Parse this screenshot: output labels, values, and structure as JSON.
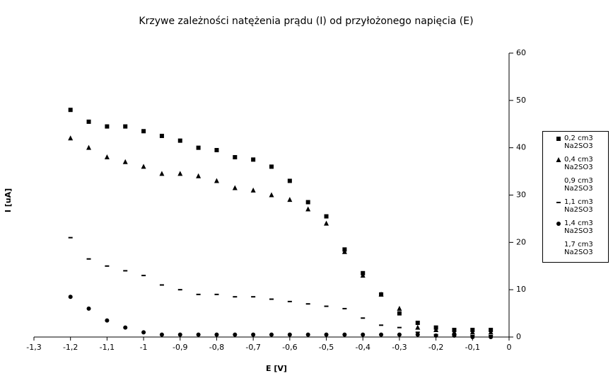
{
  "chart_data": {
    "type": "scatter",
    "title": "Krzywe zależności natężenia prądu (I) od przyłożonego napięcia (E)",
    "x_label": "E [V]",
    "y_label": "I [uA]",
    "x": [
      -1.2,
      -1.15,
      -1.1,
      -1.05,
      -1,
      -0.95,
      -0.9,
      -0.85,
      -0.8,
      -0.75,
      -0.7,
      -0.65,
      -0.6,
      -0.55,
      -0.5,
      -0.45,
      -0.4,
      -0.35,
      -0.3,
      -0.25,
      -0.2,
      -0.15,
      -0.1,
      -0.05
    ],
    "series": [
      {
        "name": "0,2 cm3 Na2SO3",
        "color": "#000000",
        "marker": "square",
        "values": [
          48,
          45.5,
          44.5,
          44.5,
          43.5,
          42.5,
          41.5,
          40,
          39.5,
          38,
          37.5,
          36,
          33,
          28.5,
          25.5,
          18.5,
          13.5,
          9,
          5,
          3,
          2,
          1.5,
          1.5,
          1.5
        ]
      },
      {
        "name": "0,4 cm3 Na2SO3",
        "color": "#000000",
        "marker": "triangle",
        "values": [
          42,
          40,
          38,
          37,
          36,
          34.5,
          34.5,
          34,
          33,
          31.5,
          31,
          30,
          29,
          27,
          24,
          18,
          13,
          9,
          6,
          2,
          1.5,
          1,
          1,
          1
        ]
      },
      {
        "name": "0,9 cm3 Na2SO3",
        "color": "#000000",
        "marker": "none",
        "values": [
          null,
          null,
          null,
          null,
          null,
          null,
          null,
          null,
          null,
          null,
          null,
          null,
          null,
          null,
          null,
          null,
          null,
          null,
          null,
          null,
          null,
          null,
          null,
          null
        ]
      },
      {
        "name": "1,1 cm3 Na2SO3",
        "color": "#000000",
        "marker": "dash",
        "values": [
          21,
          16.5,
          15,
          14,
          13,
          11,
          10,
          9,
          9,
          8.5,
          8.5,
          8,
          7.5,
          7,
          6.5,
          6,
          4,
          2.5,
          2,
          1,
          0.5,
          0.5,
          0.3,
          0.3
        ]
      },
      {
        "name": "1,4 cm3 Na2SO3",
        "color": "#000000",
        "marker": "circle",
        "values": [
          8.5,
          6,
          3.5,
          2,
          1,
          0.5,
          0.5,
          0.5,
          0.5,
          0.5,
          0.5,
          0.5,
          0.5,
          0.5,
          0.5,
          0.5,
          0.5,
          0.5,
          0.5,
          0.5,
          0.3,
          0.3,
          0,
          0
        ]
      },
      {
        "name": "1,7 cm3 Na2SO3",
        "color": "#000000",
        "marker": "none",
        "values": [
          null,
          null,
          null,
          null,
          null,
          null,
          null,
          null,
          null,
          null,
          null,
          null,
          null,
          null,
          null,
          null,
          null,
          null,
          null,
          null,
          null,
          null,
          null,
          null
        ]
      }
    ],
    "xlim": [
      -1.3,
      0
    ],
    "xticks": [
      {
        "value": -1.3,
        "label": "-1,3"
      },
      {
        "value": -1.2,
        "label": "-1,2"
      },
      {
        "value": -1.1,
        "label": "-1,1"
      },
      -1,
      {
        "value": -0.9,
        "label": "-0,9"
      },
      {
        "value": -0.8,
        "label": "-0,8"
      },
      {
        "value": -0.7,
        "label": "-0,7"
      },
      {
        "value": -0.6,
        "label": "-0,6"
      },
      {
        "value": -0.5,
        "label": "-0,5"
      },
      {
        "value": -0.4,
        "label": "-0,4"
      },
      {
        "value": -0.3,
        "label": "-0,3"
      },
      {
        "value": -0.2,
        "label": "-0,2"
      },
      {
        "value": -0.1,
        "label": "-0,1"
      },
      0
    ],
    "ylim": [
      0,
      60
    ],
    "yticks": [
      0,
      10,
      20,
      30,
      40,
      50,
      60
    ],
    "y_axis_side": "right",
    "legend": "right"
  }
}
